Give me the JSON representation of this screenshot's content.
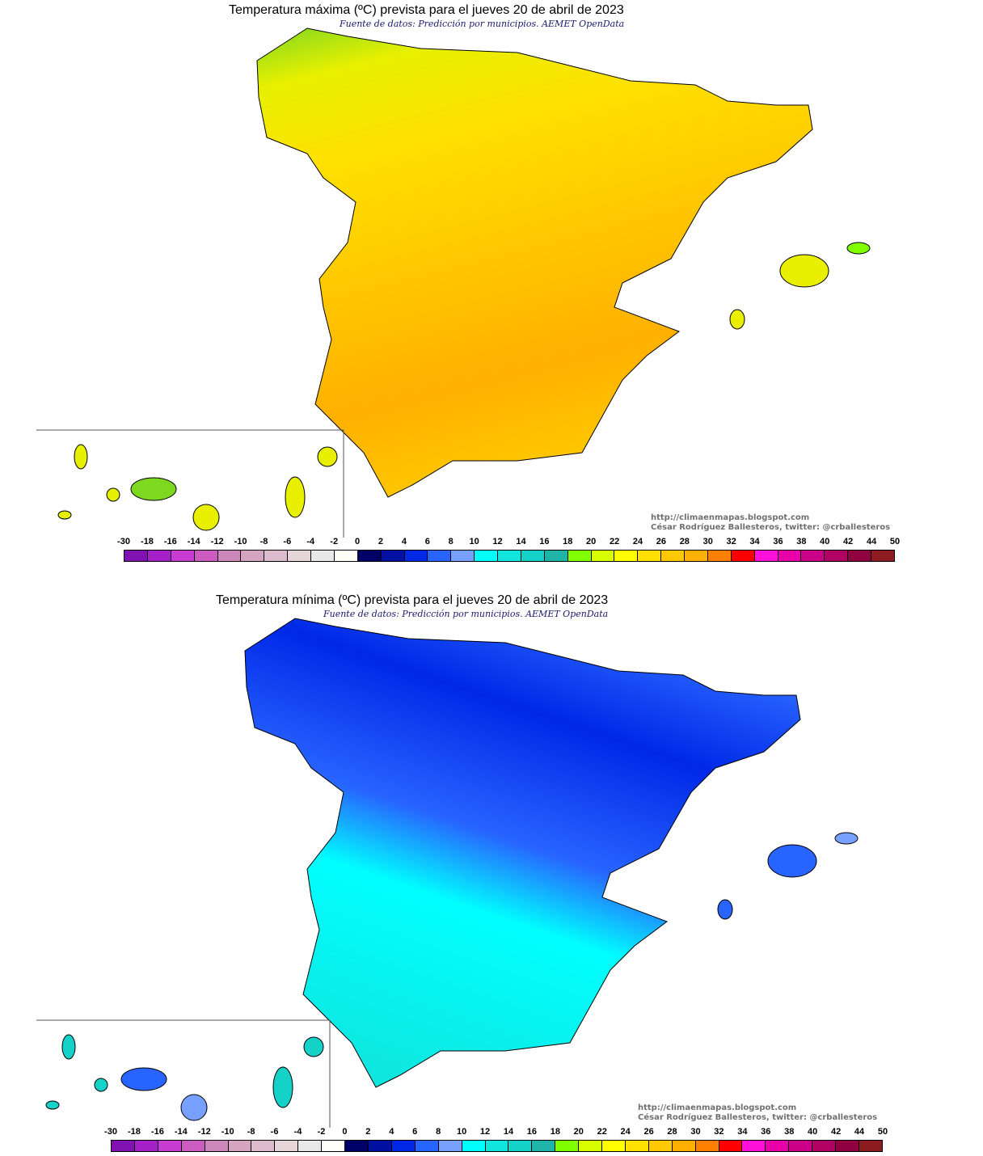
{
  "maps": [
    {
      "title": "Temperatura máxima (ºC) prevista para el jueves 20 de abril de 2023",
      "source": "Fuente de datos: Predicción por municipios. AEMET OpenData",
      "credit_url": "http://climaenmapas.blogspot.com",
      "credit_author": "César Rodríguez Ballesteros, twitter: @crballesteros",
      "fill_colors": [
        "#7fd820",
        "#e8f000",
        "#ffe000",
        "#ffc800",
        "#ffb000",
        "#ff8c00"
      ]
    },
    {
      "title": "Temperatura mínima (ºC) prevista para el jueves 20 de abril de 2023",
      "source": "Fuente de datos: Predicción por municipios. AEMET OpenData",
      "credit_url": "http://climaenmapas.blogspot.com",
      "credit_author": "César Rodríguez Ballesteros, twitter: @crballesteros",
      "fill_colors": [
        "#0010a0",
        "#0028e6",
        "#2864ff",
        "#78a0ff",
        "#00ffff",
        "#10e4dc"
      ]
    }
  ],
  "legend": {
    "labels": [
      "-30",
      "-18",
      "-16",
      "-14",
      "-12",
      "-10",
      "-8",
      "-6",
      "-4",
      "-2",
      "0",
      "2",
      "4",
      "6",
      "8",
      "10",
      "12",
      "14",
      "16",
      "18",
      "20",
      "22",
      "24",
      "26",
      "28",
      "30",
      "32",
      "34",
      "36",
      "38",
      "40",
      "42",
      "44",
      "50"
    ],
    "colors": [
      "#7f12b0",
      "#a520c8",
      "#c83cd2",
      "#cc5cc0",
      "#cc88bb",
      "#d4a4c0",
      "#dcbccc",
      "#e6d6da",
      "#e8e8e8",
      "#fffff8",
      "#000066",
      "#0010a0",
      "#0028e6",
      "#2864ff",
      "#78a0ff",
      "#00ffff",
      "#10e4dc",
      "#14d2c8",
      "#20b4a8",
      "#80ff00",
      "#d8ff00",
      "#ffff00",
      "#ffe000",
      "#ffc800",
      "#ffb000",
      "#ff8000",
      "#ff0000",
      "#ff10d8",
      "#e800a8",
      "#cc0088",
      "#b00064",
      "#900040",
      "#8c1c20"
    ]
  }
}
